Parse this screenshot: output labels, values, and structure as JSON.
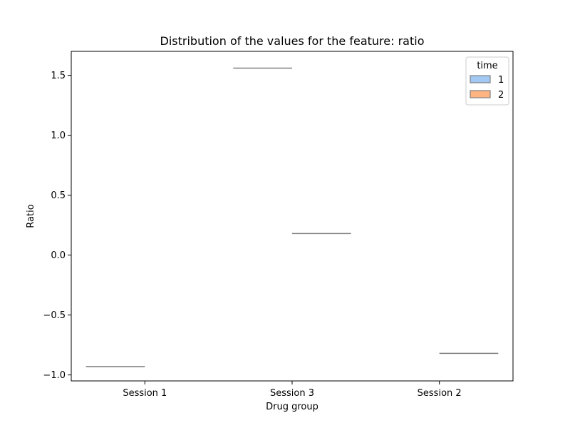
{
  "chart_data": {
    "type": "box",
    "title": "Distribution of the values for the feature: ratio",
    "xlabel": "Drug group",
    "ylabel": "Ratio",
    "categories": [
      "Session 1",
      "Session 3",
      "Session 2"
    ],
    "ylim": [
      -1.05,
      1.7
    ],
    "yticks": [
      -1.0,
      -0.5,
      0.0,
      0.5,
      1.0,
      1.5
    ],
    "ytick_labels": [
      "−1.0",
      "−0.5",
      "0.0",
      "0.5",
      "1.0",
      "1.5"
    ],
    "legend": {
      "title": "time",
      "placement": "top-right",
      "entries": [
        {
          "label": "1",
          "color": "#a1c9f4"
        },
        {
          "label": "2",
          "color": "#ffb482"
        }
      ]
    },
    "series": [
      {
        "name": "1",
        "color": "#a1c9f4",
        "values": [
          -0.93,
          1.56,
          null
        ]
      },
      {
        "name": "2",
        "color": "#ffb482",
        "values": [
          null,
          0.18,
          -0.82
        ]
      }
    ],
    "grid": false,
    "line_color": "#808080"
  }
}
